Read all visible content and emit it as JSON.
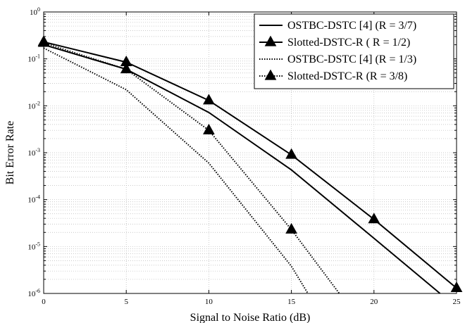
{
  "chart_data": {
    "type": "line",
    "xlabel": "Signal to Noise Ratio (dB)",
    "ylabel": "Bit Error Rate",
    "x_scale": "linear",
    "y_scale": "log",
    "xlim": [
      0,
      25
    ],
    "ylim": [
      1e-06,
      1
    ],
    "x_ticks": [
      0,
      5,
      10,
      15,
      20,
      25
    ],
    "x_tick_labels": [
      "0",
      "5",
      "10",
      "15",
      "20",
      "25"
    ],
    "y_ticks": [
      {
        "base": "10",
        "exp": "0",
        "value": 1
      },
      {
        "base": "10",
        "exp": "-1",
        "value": 0.1
      },
      {
        "base": "10",
        "exp": "-2",
        "value": 0.01
      },
      {
        "base": "10",
        "exp": "-3",
        "value": 0.001
      },
      {
        "base": "10",
        "exp": "-4",
        "value": 0.0001
      },
      {
        "base": "10",
        "exp": "-5",
        "value": 1e-05
      },
      {
        "base": "10",
        "exp": "-6",
        "value": 1e-06
      }
    ],
    "grid": true,
    "legend_position": "top-right",
    "series": [
      {
        "name": "OSTBC-DSTC [4] (R = 3/7)",
        "line_style": "solid",
        "marker": "none",
        "x": [
          0,
          5,
          10,
          15,
          20,
          24
        ],
        "y": [
          0.2,
          0.06,
          0.0072,
          0.00043,
          1.5e-05,
          1e-06
        ]
      },
      {
        "name": "Slotted-DSTC-R ( R = 1/2)",
        "line_style": "solid",
        "marker": "triangle",
        "x": [
          0,
          5,
          10,
          15,
          20,
          25
        ],
        "y": [
          0.23,
          0.085,
          0.013,
          0.0009,
          3.8e-05,
          1.3e-06
        ]
      },
      {
        "name": "OSTBC-DSTC [4] (R = 1/3)",
        "line_style": "dotted",
        "marker": "none",
        "x": [
          0,
          5,
          10,
          15,
          16
        ],
        "y": [
          0.17,
          0.022,
          0.0006,
          3.8e-06,
          1e-06
        ]
      },
      {
        "name": "Slotted-DSTC-R (R = 3/8)",
        "line_style": "dotted",
        "marker": "triangle",
        "x": [
          0,
          5,
          10,
          15,
          17.9
        ],
        "y": [
          0.22,
          0.06,
          0.003,
          2.3e-05,
          1e-06
        ]
      }
    ]
  },
  "colors": {
    "line": "#000000",
    "grid": "#b8b8b8",
    "background": "#ffffff"
  }
}
